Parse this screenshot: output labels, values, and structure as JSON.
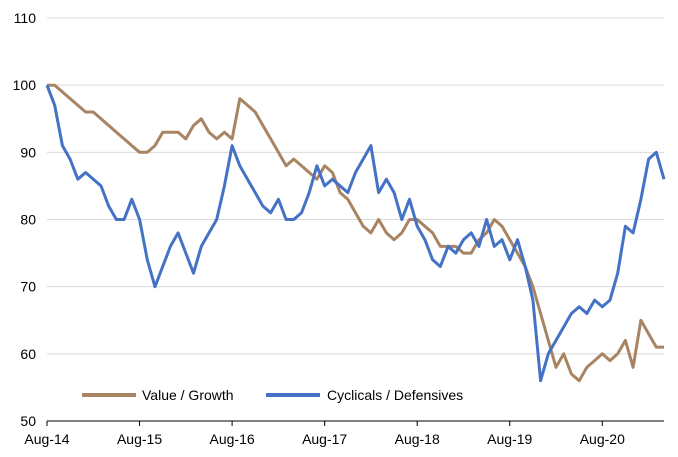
{
  "chart_data": {
    "type": "line",
    "xlabel": "",
    "ylabel": "",
    "x_tick_labels": [
      "Aug-14",
      "Aug-15",
      "Aug-16",
      "Aug-17",
      "Aug-18",
      "Aug-19",
      "Aug-20"
    ],
    "y_ticks": [
      50,
      60,
      70,
      80,
      90,
      100,
      110
    ],
    "ylim": [
      50,
      110
    ],
    "xlim": [
      "2014-08",
      "2021-04"
    ],
    "grid": "horizontal",
    "legend_position": "bottom-left",
    "colors": {
      "value_growth": "#A98462",
      "cyclicals_defensives": "#4472C4",
      "grid": "#D9D9D9",
      "axis": "#000000"
    },
    "series": [
      {
        "name": "Value / Growth",
        "color": "#A98462",
        "x": [
          "2014-08",
          "2014-09",
          "2014-10",
          "2014-11",
          "2014-12",
          "2015-01",
          "2015-02",
          "2015-03",
          "2015-04",
          "2015-05",
          "2015-06",
          "2015-07",
          "2015-08",
          "2015-09",
          "2015-10",
          "2015-11",
          "2015-12",
          "2016-01",
          "2016-02",
          "2016-03",
          "2016-04",
          "2016-05",
          "2016-06",
          "2016-07",
          "2016-08",
          "2016-09",
          "2016-10",
          "2016-11",
          "2016-12",
          "2017-01",
          "2017-02",
          "2017-03",
          "2017-04",
          "2017-05",
          "2017-06",
          "2017-07",
          "2017-08",
          "2017-09",
          "2017-10",
          "2017-11",
          "2017-12",
          "2018-01",
          "2018-02",
          "2018-03",
          "2018-04",
          "2018-05",
          "2018-06",
          "2018-07",
          "2018-08",
          "2018-09",
          "2018-10",
          "2018-11",
          "2018-12",
          "2019-01",
          "2019-02",
          "2019-03",
          "2019-04",
          "2019-05",
          "2019-06",
          "2019-07",
          "2019-08",
          "2019-09",
          "2019-10",
          "2019-11",
          "2019-12",
          "2020-01",
          "2020-02",
          "2020-03",
          "2020-04",
          "2020-05",
          "2020-06",
          "2020-07",
          "2020-08",
          "2020-09",
          "2020-10",
          "2020-11",
          "2020-12",
          "2021-01",
          "2021-02",
          "2021-03",
          "2021-04"
        ],
        "values": [
          100,
          100,
          99,
          98,
          97,
          96,
          96,
          95,
          94,
          93,
          92,
          91,
          90,
          90,
          91,
          93,
          93,
          93,
          92,
          94,
          95,
          93,
          92,
          93,
          92,
          98,
          97,
          96,
          94,
          92,
          90,
          88,
          89,
          88,
          87,
          86,
          88,
          87,
          84,
          83,
          81,
          79,
          78,
          80,
          78,
          77,
          78,
          80,
          80,
          79,
          78,
          76,
          76,
          76,
          75,
          75,
          77,
          78,
          80,
          79,
          77,
          75,
          73,
          70,
          66,
          62,
          58,
          60,
          57,
          56,
          58,
          59,
          60,
          59,
          60,
          62,
          58,
          65,
          63,
          61,
          61
        ]
      },
      {
        "name": "Cyclicals / Defensives",
        "color": "#4472C4",
        "x": [
          "2014-08",
          "2014-09",
          "2014-10",
          "2014-11",
          "2014-12",
          "2015-01",
          "2015-02",
          "2015-03",
          "2015-04",
          "2015-05",
          "2015-06",
          "2015-07",
          "2015-08",
          "2015-09",
          "2015-10",
          "2015-11",
          "2015-12",
          "2016-01",
          "2016-02",
          "2016-03",
          "2016-04",
          "2016-05",
          "2016-06",
          "2016-07",
          "2016-08",
          "2016-09",
          "2016-10",
          "2016-11",
          "2016-12",
          "2017-01",
          "2017-02",
          "2017-03",
          "2017-04",
          "2017-05",
          "2017-06",
          "2017-07",
          "2017-08",
          "2017-09",
          "2017-10",
          "2017-11",
          "2017-12",
          "2018-01",
          "2018-02",
          "2018-03",
          "2018-04",
          "2018-05",
          "2018-06",
          "2018-07",
          "2018-08",
          "2018-09",
          "2018-10",
          "2018-11",
          "2018-12",
          "2019-01",
          "2019-02",
          "2019-03",
          "2019-04",
          "2019-05",
          "2019-06",
          "2019-07",
          "2019-08",
          "2019-09",
          "2019-10",
          "2019-11",
          "2019-12",
          "2020-01",
          "2020-02",
          "2020-03",
          "2020-04",
          "2020-05",
          "2020-06",
          "2020-07",
          "2020-08",
          "2020-09",
          "2020-10",
          "2020-11",
          "2020-12",
          "2021-01",
          "2021-02",
          "2021-03",
          "2021-04"
        ],
        "values": [
          100,
          97,
          91,
          89,
          86,
          87,
          86,
          85,
          82,
          80,
          80,
          83,
          80,
          74,
          70,
          73,
          76,
          78,
          75,
          72,
          76,
          78,
          80,
          85,
          91,
          88,
          86,
          84,
          82,
          81,
          83,
          80,
          80,
          81,
          84,
          88,
          85,
          86,
          85,
          84,
          87,
          89,
          91,
          84,
          86,
          84,
          80,
          83,
          79,
          77,
          74,
          73,
          76,
          75,
          77,
          78,
          76,
          80,
          76,
          77,
          74,
          77,
          73,
          68,
          56,
          60,
          62,
          64,
          66,
          67,
          66,
          68,
          67,
          68,
          72,
          79,
          78,
          83,
          89,
          90,
          86
        ]
      }
    ]
  }
}
